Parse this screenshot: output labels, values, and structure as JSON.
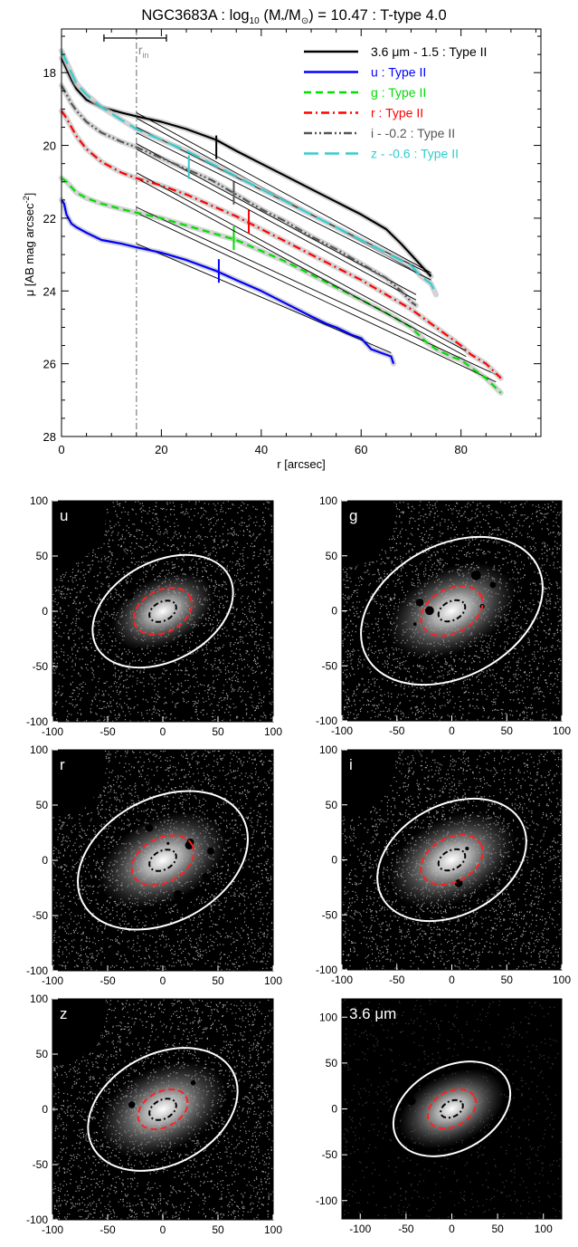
{
  "chart_data": [
    {
      "type": "line",
      "title_prefix": "NGC3683A : log",
      "title_sub": "10",
      "title_mid": " (M",
      "title_sub2": "*",
      "title_mid2": "/M",
      "title_sub3": "⊙",
      "title_suffix": ") = 10.47 : T-type 4.0",
      "xlabel": "r [arcsec]",
      "ylabel": "μ [AB mag arcsec",
      "ylabel_sup": "-2",
      "ylabel_end": "]",
      "xlim": [
        0,
        96
      ],
      "ylim": [
        28,
        16.8
      ],
      "yinverted": true,
      "xticks": [
        "0",
        "20",
        "40",
        "60",
        "80"
      ],
      "yticks": [
        "18",
        "20",
        "22",
        "24",
        "26",
        "28"
      ],
      "rin_label": "r",
      "rin_sub": "in",
      "rin_value": 15,
      "rin_bar": [
        8.5,
        21
      ],
      "legend_position": "top-right",
      "series": [
        {
          "name": "3.6 μm - 1.5 : Type II",
          "color": "#000000",
          "dash": "solid",
          "x": [
            0,
            1,
            2,
            3,
            5,
            8,
            12,
            15,
            20,
            25,
            31,
            35,
            40,
            45,
            50,
            55,
            60,
            65,
            68,
            70,
            72,
            74
          ],
          "y": [
            17.6,
            17.9,
            18.2,
            18.45,
            18.75,
            18.95,
            19.1,
            19.2,
            19.35,
            19.55,
            19.85,
            20.15,
            20.5,
            20.85,
            21.2,
            21.55,
            21.9,
            22.3,
            22.7,
            23.0,
            23.3,
            23.6
          ],
          "break_r": 31,
          "break_mu": 20.05,
          "fits": [
            [
              [
                15,
                19.1
              ],
              [
                74,
                23.5
              ]
            ],
            [
              [
                15,
                19.25
              ],
              [
                74,
                23.7
              ]
            ]
          ]
        },
        {
          "name": "u : Type II",
          "color": "#0000ff",
          "dash": "solid",
          "x": [
            0,
            0.5,
            1,
            2,
            3,
            5,
            8,
            10,
            12,
            15,
            20,
            25,
            31,
            35,
            40,
            45,
            50,
            53,
            55,
            58,
            60,
            62,
            64,
            66,
            66.5
          ],
          "y": [
            21.5,
            21.6,
            21.9,
            22.15,
            22.25,
            22.4,
            22.6,
            22.65,
            22.7,
            22.8,
            22.95,
            23.15,
            23.45,
            23.7,
            24.0,
            24.35,
            24.7,
            24.9,
            25.0,
            25.2,
            25.3,
            25.6,
            25.7,
            25.8,
            26.0
          ],
          "break_r": 31.5,
          "break_mu": 23.45,
          "fits": [
            [
              [
                15,
                22.7
              ],
              [
                66,
                25.7
              ]
            ]
          ]
        },
        {
          "name": "g : Type II",
          "color": "#00dd00",
          "dash": "dashed",
          "x": [
            0,
            1,
            2,
            3,
            5,
            8,
            12,
            15,
            20,
            25,
            30,
            35,
            40,
            45,
            50,
            55,
            60,
            65,
            70,
            73,
            75,
            78,
            80,
            82,
            85,
            88
          ],
          "y": [
            20.9,
            21.0,
            21.15,
            21.3,
            21.45,
            21.6,
            21.75,
            21.85,
            22.0,
            22.2,
            22.4,
            22.6,
            22.9,
            23.2,
            23.55,
            23.9,
            24.25,
            24.6,
            25.0,
            25.4,
            25.6,
            25.8,
            25.9,
            26.1,
            26.4,
            26.8
          ],
          "break_r": 34.5,
          "break_mu": 22.55,
          "fits": [
            [
              [
                15,
                21.7
              ],
              [
                87,
                26.3
              ]
            ],
            [
              [
                15,
                21.85
              ],
              [
                87,
                26.5
              ]
            ]
          ]
        },
        {
          "name": "r : Type II",
          "color": "#ff0000",
          "dash": "dashdot",
          "x": [
            0,
            1,
            2,
            3,
            5,
            8,
            12,
            15,
            20,
            25,
            30,
            35,
            40,
            45,
            50,
            55,
            60,
            65,
            70,
            75,
            80,
            82,
            85,
            88
          ],
          "y": [
            19.05,
            19.25,
            19.5,
            19.75,
            20.1,
            20.45,
            20.75,
            20.9,
            21.1,
            21.35,
            21.65,
            21.95,
            22.3,
            22.65,
            23.0,
            23.35,
            23.7,
            24.1,
            24.5,
            25.0,
            25.5,
            25.75,
            26.0,
            26.4
          ],
          "break_r": 37.5,
          "break_mu": 22.1,
          "fits": [
            [
              [
                15,
                20.75
              ],
              [
                81,
                25.65
              ]
            ],
            [
              [
                15,
                20.9
              ],
              [
                81,
                25.8
              ]
            ]
          ]
        },
        {
          "name": "i - -0.2 : Type II",
          "color": "#555555",
          "dash": "dashdotdot",
          "x": [
            0,
            1,
            2,
            3,
            5,
            8,
            12,
            15,
            20,
            25,
            30,
            35,
            40,
            45,
            50,
            55,
            60,
            65,
            68,
            70,
            71
          ],
          "y": [
            18.35,
            18.6,
            18.85,
            19.05,
            19.35,
            19.65,
            19.9,
            20.05,
            20.35,
            20.65,
            20.95,
            21.35,
            21.75,
            22.1,
            22.5,
            22.85,
            23.25,
            23.65,
            24.0,
            24.3,
            24.4
          ],
          "break_r": 34.5,
          "break_mu": 21.3,
          "fits": [
            [
              [
                15,
                19.95
              ],
              [
                71,
                24.1
              ]
            ],
            [
              [
                15,
                20.1
              ],
              [
                71,
                24.25
              ]
            ]
          ]
        },
        {
          "name": "z - -0.6 : Type II",
          "color": "#33cccc",
          "dash": "longdash",
          "x": [
            0,
            1,
            2,
            3,
            5,
            8,
            12,
            15,
            20,
            25,
            30,
            35,
            40,
            45,
            50,
            55,
            60,
            65,
            70,
            72,
            74,
            75
          ],
          "y": [
            17.4,
            17.7,
            18.0,
            18.3,
            18.6,
            18.95,
            19.3,
            19.55,
            19.85,
            20.15,
            20.5,
            20.85,
            21.2,
            21.55,
            21.9,
            22.25,
            22.6,
            22.95,
            23.3,
            23.6,
            23.8,
            24.1
          ],
          "break_r": 25.5,
          "break_mu": 20.6,
          "fits": [
            [
              [
                15,
                19.5
              ],
              [
                74,
                23.55
              ]
            ],
            [
              [
                15,
                19.65
              ],
              [
                74,
                23.7
              ]
            ]
          ]
        }
      ]
    },
    {
      "type": "image",
      "label": "u",
      "xlim": [
        -100,
        100
      ],
      "ylim": [
        -100,
        100
      ],
      "xticks": [
        "-100",
        "-50",
        "0",
        "50",
        "100"
      ],
      "yticks": [
        "100",
        "50",
        "0",
        "-50",
        "-100"
      ],
      "outer_ellipse": [
        68,
        45
      ],
      "mid_ellipse": [
        28,
        19
      ],
      "inner_ellipse": [
        13,
        8.5
      ]
    },
    {
      "type": "image",
      "label": "g",
      "xlim": [
        -100,
        100
      ],
      "ylim": [
        -100,
        100
      ],
      "xticks": [
        "-100",
        "-50",
        "0",
        "50",
        "100"
      ],
      "yticks": [
        "100",
        "50",
        "0",
        "-50",
        "-100"
      ],
      "outer_ellipse": [
        88,
        60
      ],
      "mid_ellipse": [
        30,
        20
      ],
      "inner_ellipse": [
        13,
        8.5
      ]
    },
    {
      "type": "image",
      "label": "r",
      "xlim": [
        -100,
        100
      ],
      "ylim": [
        -100,
        100
      ],
      "xticks": [
        "-100",
        "-50",
        "0",
        "50",
        "100"
      ],
      "yticks": [
        "100",
        "50",
        "0",
        "-50",
        "-100"
      ],
      "outer_ellipse": [
        82,
        56
      ],
      "mid_ellipse": [
        30,
        20
      ],
      "inner_ellipse": [
        13,
        8.5
      ]
    },
    {
      "type": "image",
      "label": "i",
      "xlim": [
        -100,
        100
      ],
      "ylim": [
        -100,
        100
      ],
      "xticks": [
        "-100",
        "-50",
        "0",
        "50",
        "100"
      ],
      "yticks": [
        "100",
        "50",
        "0",
        "-50",
        "-100"
      ],
      "outer_ellipse": [
        72,
        50
      ],
      "mid_ellipse": [
        30,
        20
      ],
      "inner_ellipse": [
        13,
        8.5
      ]
    },
    {
      "type": "image",
      "label": "z",
      "xlim": [
        -100,
        100
      ],
      "ylim": [
        -100,
        100
      ],
      "xticks": [
        "-100",
        "-50",
        "0",
        "50",
        "100"
      ],
      "yticks": [
        "100",
        "50",
        "0",
        "-50",
        "-100"
      ],
      "outer_ellipse": [
        72,
        50
      ],
      "mid_ellipse": [
        24,
        16
      ],
      "inner_ellipse": [
        13,
        8.5
      ]
    },
    {
      "type": "image",
      "label": "3.6 μm",
      "xlim": [
        -120,
        120
      ],
      "ylim": [
        -120,
        120
      ],
      "xticks": [
        "-100",
        "-50",
        "0",
        "50",
        "100"
      ],
      "yticks": [
        "100",
        "50",
        "0",
        "-50",
        "-100"
      ],
      "outer_ellipse": [
        68,
        46
      ],
      "mid_ellipse": [
        28,
        19
      ],
      "inner_ellipse": [
        13,
        8.5
      ]
    }
  ],
  "colors": {
    "fit_line": "#000000",
    "shade": "#c0c0c0",
    "rin_line": "#888888",
    "axis": "#000000",
    "image_bg": "#000000",
    "outer_ellipse": "#ffffff",
    "mid_ellipse": "#ff2020",
    "inner_ellipse": "#000000"
  }
}
